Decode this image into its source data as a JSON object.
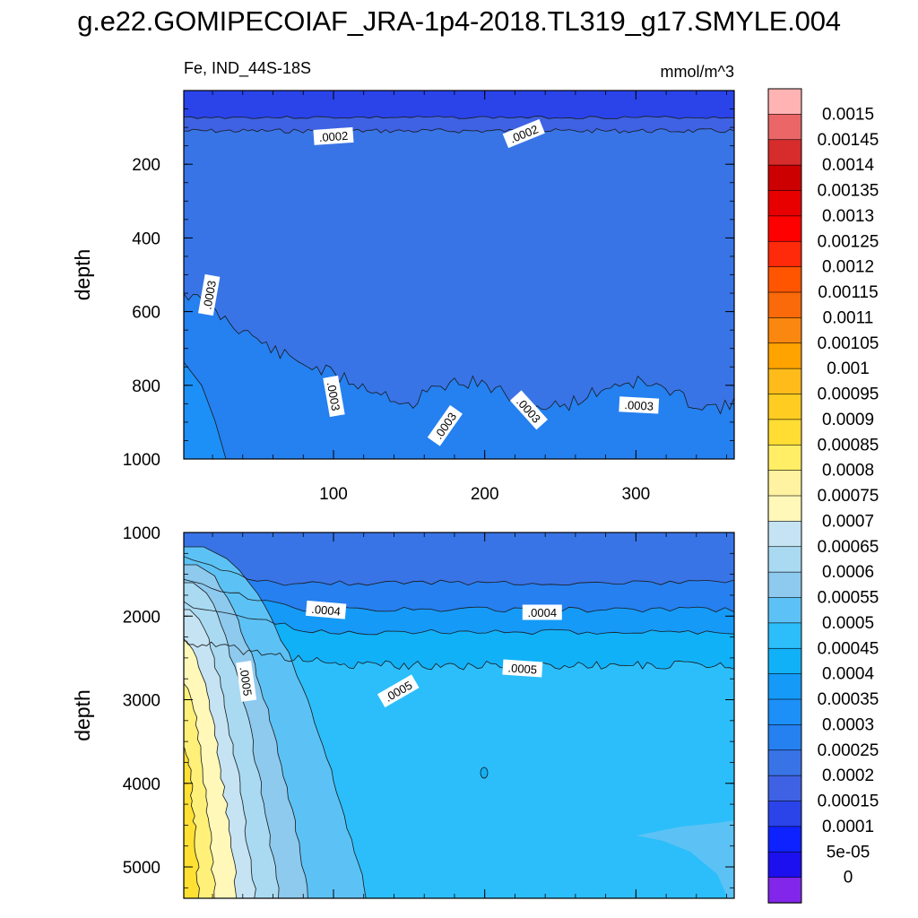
{
  "title": "g.e22.GOMIPECOIAF_JRA-1p4-2018.TL319_g17.SMYLE.004",
  "chart_data": {
    "type": "heatmap",
    "variable_label": "Fe, IND_44S-18S",
    "units_label": "mmol/m^3",
    "x_axis": {
      "range": [
        1,
        365
      ],
      "ticks": [
        100,
        200,
        300
      ],
      "tick_labels": [
        "100",
        "200",
        "300"
      ]
    },
    "panels": [
      {
        "name": "upper",
        "ylabel": "depth",
        "ylim": [
          0,
          1000
        ],
        "inverted": true,
        "yticks": [
          200,
          400,
          600,
          800,
          1000
        ],
        "ytick_labels": [
          "200",
          "400",
          "600",
          "800",
          "1000"
        ],
        "show_x_tick_labels": true,
        "fill_bands": [
          {
            "color": "#2a44ea",
            "value_range": [
              0.00015,
              0.0002
            ]
          },
          {
            "color": "#3e62e3",
            "value_range": [
              0.0002,
              0.00025
            ]
          },
          {
            "color": "#3874e6",
            "value_range": [
              0.00025,
              0.0003
            ]
          },
          {
            "color": "#2580f0",
            "value_range": [
              0.0003,
              0.00035
            ]
          },
          {
            "color": "#1d90f8",
            "value_range": [
              0.00035,
              0.0004
            ]
          }
        ],
        "contour_labels": [
          {
            "text": ".0002",
            "x": 100,
            "y": 125,
            "angle": -4
          },
          {
            "text": ".0002",
            "x": 226,
            "y": 118,
            "angle": -22
          },
          {
            "text": ".0003",
            "x": 18,
            "y": 555,
            "angle": -80
          },
          {
            "text": ".0003",
            "x": 100,
            "y": 830,
            "angle": 80
          },
          {
            "text": ".0003",
            "x": 174,
            "y": 910,
            "angle": -55
          },
          {
            "text": ".0003",
            "x": 229,
            "y": 868,
            "angle": 48
          },
          {
            "text": ".0003",
            "x": 302,
            "y": 855,
            "angle": 3
          }
        ]
      },
      {
        "name": "lower",
        "ylabel": "depth",
        "ylim": [
          1000,
          5375
        ],
        "inverted": true,
        "yticks": [
          1000,
          2000,
          3000,
          4000,
          5000
        ],
        "ytick_labels": [
          "1000",
          "2000",
          "3000",
          "4000",
          "5000"
        ],
        "show_x_tick_labels": false,
        "fill_bands": [
          {
            "color": "#ffe033",
            "value_range": [
              0.00085,
              0.0009
            ]
          },
          {
            "color": "#fff07a",
            "value_range": [
              0.0008,
              0.00085
            ]
          },
          {
            "color": "#fff8b8",
            "value_range": [
              0.00075,
              0.0008
            ]
          },
          {
            "color": "#c5e3f3",
            "value_range": [
              0.0007,
              0.00075
            ]
          },
          {
            "color": "#a9daf2",
            "value_range": [
              0.00065,
              0.0007
            ]
          },
          {
            "color": "#8ec9ee",
            "value_range": [
              0.0006,
              0.00065
            ]
          },
          {
            "color": "#5cc2f5",
            "value_range": [
              0.00055,
              0.0006
            ]
          },
          {
            "color": "#2cbefa",
            "value_range": [
              0.0005,
              0.00055
            ]
          },
          {
            "color": "#11b1f8",
            "value_range": [
              0.00045,
              0.0005
            ]
          },
          {
            "color": "#159af7",
            "value_range": [
              0.0004,
              0.00045
            ]
          },
          {
            "color": "#2680f0",
            "value_range": [
              0.00035,
              0.0004
            ]
          },
          {
            "color": "#3874e6",
            "value_range": [
              0.0003,
              0.00035
            ]
          }
        ],
        "contour_labels": [
          {
            "text": ".0004",
            "x": 95,
            "y": 1930,
            "angle": 5
          },
          {
            "text": ".0004",
            "x": 238,
            "y": 1960,
            "angle": 0
          },
          {
            "text": ".0005",
            "x": 42,
            "y": 2780,
            "angle": 82
          },
          {
            "text": ".0005",
            "x": 143,
            "y": 2900,
            "angle": -30
          },
          {
            "text": ".0005",
            "x": 225,
            "y": 2630,
            "angle": 4
          }
        ]
      }
    ],
    "colorbar": {
      "levels": [
        "0.0015",
        "0.00145",
        "0.0014",
        "0.00135",
        "0.0013",
        "0.00125",
        "0.0012",
        "0.00115",
        "0.0011",
        "0.00105",
        "0.001",
        "0.00095",
        "0.0009",
        "0.00085",
        "0.0008",
        "0.00075",
        "0.0007",
        "0.00065",
        "0.0006",
        "0.00055",
        "0.0005",
        "0.00045",
        "0.0004",
        "0.00035",
        "0.0003",
        "0.00025",
        "0.0002",
        "0.00015",
        "0.0001",
        "5e-05",
        "0"
      ],
      "colors": [
        "#ffb3b3",
        "#eb6767",
        "#d62c2c",
        "#cc0000",
        "#e60000",
        "#ff0000",
        "#ff2a0a",
        "#ff5500",
        "#fa6a0a",
        "#fa870f",
        "#ffa300",
        "#ffbb1a",
        "#ffcc22",
        "#ffdd33",
        "#ffee66",
        "#fff2a0",
        "#fff8b8",
        "#c5e3f3",
        "#a9daf2",
        "#8ec9ee",
        "#5cc2f5",
        "#2cbefa",
        "#11b1f8",
        "#159af7",
        "#1d90f8",
        "#2580f0",
        "#3874e6",
        "#3e62e3",
        "#2a44ea",
        "#0e22ff",
        "#1c10ee",
        "#8226ea"
      ]
    }
  }
}
